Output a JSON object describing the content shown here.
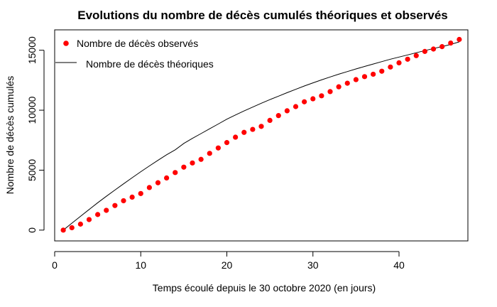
{
  "chart_data": {
    "type": "scatter",
    "title": "Evolutions du nombre de décès cumulés théoriques et observés",
    "xlabel": "Temps écoulé depuis le 30 octobre 2020 (en jours)",
    "ylabel": "Nombre de décès cumulés",
    "xlim": [
      0,
      48
    ],
    "ylim": [
      -900,
      16700
    ],
    "x_ticks": [
      0,
      10,
      20,
      30,
      40
    ],
    "y_ticks": [
      0,
      5000,
      10000,
      15000
    ],
    "grid": false,
    "legend_position": "top-left",
    "legend": {
      "observed_label": "Nombre de décès   observés",
      "theoretical_label": "Nombre de décès théoriques"
    },
    "series": [
      {
        "name": "Nombre de décès   observés",
        "kind": "points",
        "color": "#ff0000",
        "x": [
          1,
          2,
          3,
          4,
          5,
          6,
          7,
          8,
          9,
          10,
          11,
          12,
          13,
          14,
          15,
          16,
          17,
          18,
          19,
          20,
          21,
          22,
          23,
          24,
          25,
          26,
          27,
          28,
          29,
          30,
          31,
          32,
          33,
          34,
          35,
          36,
          37,
          38,
          39,
          40,
          41,
          42,
          43,
          44,
          45,
          46,
          47
        ],
        "y": [
          0,
          200,
          500,
          880,
          1300,
          1650,
          2050,
          2450,
          2750,
          3050,
          3550,
          3950,
          4350,
          4800,
          5250,
          5600,
          5900,
          6400,
          6850,
          7300,
          7750,
          8150,
          8400,
          8650,
          9150,
          9550,
          9950,
          10300,
          10700,
          10950,
          11200,
          11550,
          11950,
          12250,
          12550,
          12800,
          13000,
          13250,
          13600,
          13950,
          14250,
          14550,
          14900,
          15100,
          15300,
          15600,
          15900
        ]
      },
      {
        "name": "Nombre de décès théoriques",
        "kind": "line",
        "color": "#000000",
        "x": [
          1,
          2,
          3,
          4,
          5,
          6,
          7,
          8,
          9,
          10,
          11,
          12,
          13,
          14,
          15,
          16,
          17,
          18,
          19,
          20,
          21,
          22,
          23,
          24,
          25,
          26,
          27,
          28,
          29,
          30,
          31,
          32,
          33,
          34,
          35,
          36,
          37,
          38,
          39,
          40,
          41,
          42,
          43,
          44,
          45,
          46,
          47
        ],
        "y": [
          0,
          580,
          1150,
          1720,
          2280,
          2820,
          3340,
          3860,
          4370,
          4870,
          5350,
          5820,
          6280,
          6700,
          7230,
          7650,
          8050,
          8450,
          8850,
          9250,
          9600,
          9940,
          10260,
          10580,
          10880,
          11170,
          11460,
          11740,
          12020,
          12280,
          12530,
          12770,
          13000,
          13220,
          13440,
          13650,
          13850,
          14050,
          14250,
          14430,
          14610,
          14790,
          14970,
          15140,
          15310,
          15480,
          15700
        ]
      }
    ]
  }
}
